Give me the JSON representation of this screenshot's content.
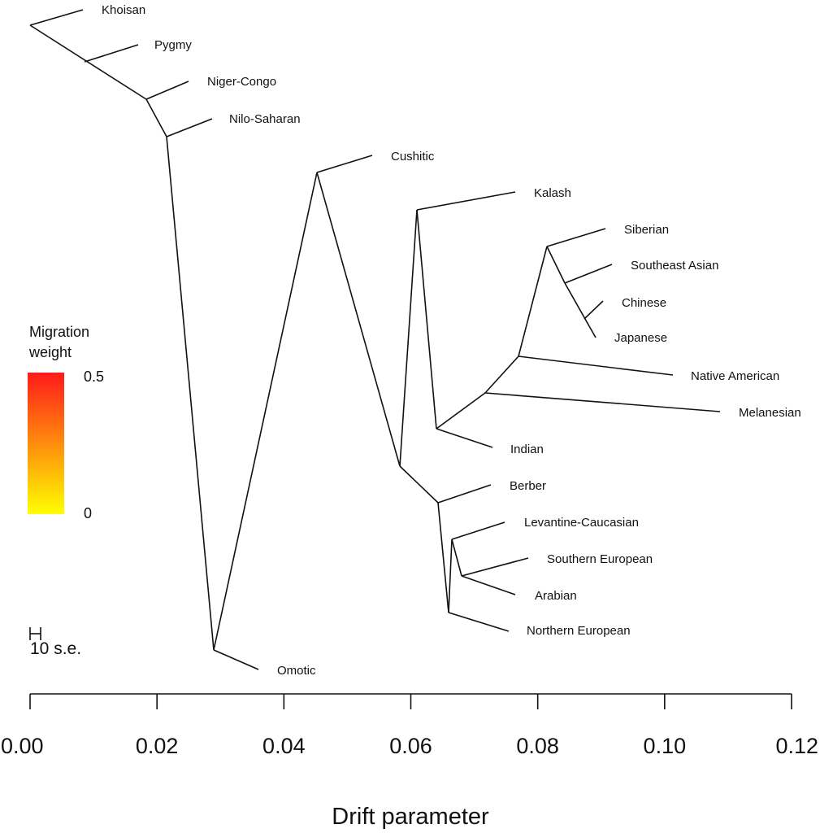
{
  "xlabel": "Drift parameter",
  "axis": {
    "ticks": [
      0.0,
      0.02,
      0.04,
      0.06,
      0.08,
      0.1,
      0.12
    ],
    "tick_labels": [
      "0.00",
      "0.02",
      "0.04",
      "0.06",
      "0.08",
      "0.10",
      "0.12"
    ]
  },
  "legend": {
    "title_line1": "Migration",
    "title_line2": "weight",
    "max_label": "0.5",
    "min_label": "0",
    "color_low": "#ffff00",
    "color_high": "#ff1a1a"
  },
  "scale_bar": {
    "label": "10 s.e."
  },
  "tips": [
    "Khoisan",
    "Pygmy",
    "Niger-Congo",
    "Nilo-Saharan",
    "Cushitic",
    "Kalash",
    "Siberian",
    "Southeast Asian",
    "Chinese",
    "Japanese",
    "Native American",
    "Melanesian",
    "Indian",
    "Berber",
    "Levantine-Caucasian",
    "Southern European",
    "Arabian",
    "Northern European",
    "Omotic"
  ]
}
